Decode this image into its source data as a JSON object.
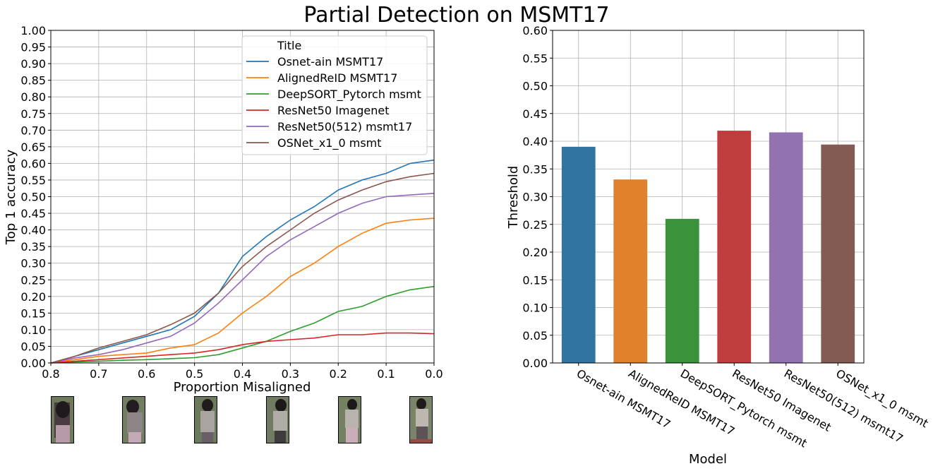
{
  "title": "Partial Detection on MSMT17",
  "colors": {
    "series": [
      "#1f77b4",
      "#ff7f0e",
      "#2ca02c",
      "#d62728",
      "#9467bd",
      "#8c564b"
    ],
    "grid": "#b0b0b0"
  },
  "chart_data": [
    {
      "type": "line",
      "xlabel": "Proportion Misaligned",
      "ylabel": "Top 1 accuracy",
      "xlim": [
        0.8,
        0.0
      ],
      "ylim": [
        0.0,
        1.0
      ],
      "xticks": [
        "0.8",
        "0.7",
        "0.6",
        "0.5",
        "0.4",
        "0.3",
        "0.2",
        "0.1",
        "0.0"
      ],
      "yticks": [
        "0.00",
        "0.05",
        "0.10",
        "0.15",
        "0.20",
        "0.25",
        "0.30",
        "0.35",
        "0.40",
        "0.45",
        "0.50",
        "0.55",
        "0.60",
        "0.65",
        "0.70",
        "0.75",
        "0.80",
        "0.85",
        "0.90",
        "0.95",
        "1.00"
      ],
      "grid": true,
      "legend": {
        "title": "Title",
        "placement": "top-right"
      },
      "x": [
        0.8,
        0.75,
        0.7,
        0.65,
        0.6,
        0.55,
        0.5,
        0.45,
        0.4,
        0.35,
        0.3,
        0.25,
        0.2,
        0.15,
        0.1,
        0.05,
        0.0
      ],
      "series": [
        {
          "name": "Osnet-ain MSMT17",
          "values": [
            0.0,
            0.02,
            0.04,
            0.06,
            0.08,
            0.1,
            0.14,
            0.21,
            0.32,
            0.38,
            0.43,
            0.47,
            0.52,
            0.55,
            0.57,
            0.6,
            0.61
          ]
        },
        {
          "name": "AlignedReID MSMT17",
          "values": [
            0.0,
            0.01,
            0.02,
            0.025,
            0.03,
            0.045,
            0.055,
            0.09,
            0.15,
            0.2,
            0.26,
            0.3,
            0.35,
            0.39,
            0.42,
            0.43,
            0.435
          ]
        },
        {
          "name": "DeepSORT_Pytorch msmt",
          "values": [
            0.0,
            0.003,
            0.005,
            0.008,
            0.01,
            0.013,
            0.016,
            0.025,
            0.045,
            0.065,
            0.095,
            0.12,
            0.155,
            0.17,
            0.2,
            0.22,
            0.23
          ]
        },
        {
          "name": "ResNet50 Imagenet",
          "values": [
            0.0,
            0.005,
            0.01,
            0.015,
            0.02,
            0.025,
            0.03,
            0.04,
            0.055,
            0.065,
            0.07,
            0.075,
            0.085,
            0.085,
            0.09,
            0.09,
            0.088
          ]
        },
        {
          "name": "ResNet50(512) msmt17",
          "values": [
            0.0,
            0.015,
            0.025,
            0.04,
            0.06,
            0.08,
            0.12,
            0.18,
            0.25,
            0.32,
            0.37,
            0.41,
            0.45,
            0.48,
            0.5,
            0.505,
            0.51
          ]
        },
        {
          "name": "OSNet_x1_0 msmt",
          "values": [
            0.0,
            0.02,
            0.045,
            0.065,
            0.085,
            0.115,
            0.15,
            0.21,
            0.29,
            0.35,
            0.4,
            0.45,
            0.49,
            0.52,
            0.545,
            0.56,
            0.57
          ]
        }
      ]
    },
    {
      "type": "bar",
      "xlabel": "Model",
      "ylabel": "Threshold",
      "ylim": [
        0.0,
        0.6
      ],
      "yticks": [
        "0.00",
        "0.05",
        "0.10",
        "0.15",
        "0.20",
        "0.25",
        "0.30",
        "0.35",
        "0.40",
        "0.45",
        "0.50",
        "0.55",
        "0.60"
      ],
      "grid": true,
      "categories": [
        "Osnet-ain MSMT17",
        "AlignedReID MSMT17",
        "DeepSORT_Pytorch msmt",
        "ResNet50 Imagenet",
        "ResNet50(512) msmt17",
        "OSNet_x1_0 msmt"
      ],
      "values": [
        0.39,
        0.331,
        0.26,
        0.419,
        0.416,
        0.394
      ],
      "bar_colors": [
        "#3274a1",
        "#e1812c",
        "#3a923a",
        "#c03d3e",
        "#9372b2",
        "#845b53"
      ]
    }
  ],
  "thumbnails": [
    {
      "name": "person-crop-1"
    },
    {
      "name": "person-crop-2"
    },
    {
      "name": "person-crop-3"
    },
    {
      "name": "person-crop-4"
    },
    {
      "name": "person-crop-5"
    },
    {
      "name": "person-crop-6"
    }
  ]
}
